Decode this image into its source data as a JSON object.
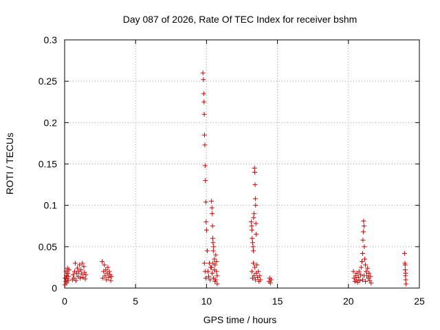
{
  "chart_data": {
    "type": "scatter",
    "title": "Day 087 of 2026, Rate Of TEC Index for receiver bshm",
    "xlabel": "GPS time / hours",
    "ylabel": "ROTI / TECUs",
    "xlim": [
      0,
      25
    ],
    "ylim": [
      0,
      0.3
    ],
    "xticks": [
      "0",
      "5",
      "10",
      "15",
      "20",
      "25"
    ],
    "yticks": [
      "0",
      "0.05",
      "0.1",
      "0.15",
      "0.2",
      "0.25",
      "0.3"
    ],
    "grid": true,
    "marker": "+",
    "color": "#cc0000",
    "points": [
      [
        0.02,
        0.004
      ],
      [
        0.05,
        0.012
      ],
      [
        0.08,
        0.008
      ],
      [
        0.1,
        0.02
      ],
      [
        0.12,
        0.015
      ],
      [
        0.15,
        0.006
      ],
      [
        0.18,
        0.011
      ],
      [
        0.2,
        0.024
      ],
      [
        0.22,
        0.018
      ],
      [
        0.25,
        0.009
      ],
      [
        0.28,
        0.014
      ],
      [
        0.3,
        0.022
      ],
      [
        0.55,
        0.01
      ],
      [
        0.6,
        0.016
      ],
      [
        0.65,
        0.012
      ],
      [
        0.7,
        0.02
      ],
      [
        0.75,
        0.03
      ],
      [
        0.8,
        0.009
      ],
      [
        0.85,
        0.018
      ],
      [
        0.9,
        0.024
      ],
      [
        0.95,
        0.014
      ],
      [
        1.0,
        0.02
      ],
      [
        1.05,
        0.028
      ],
      [
        1.1,
        0.012
      ],
      [
        1.15,
        0.022
      ],
      [
        1.2,
        0.017
      ],
      [
        1.25,
        0.03
      ],
      [
        1.3,
        0.013
      ],
      [
        1.35,
        0.026
      ],
      [
        1.4,
        0.019
      ],
      [
        1.45,
        0.011
      ],
      [
        1.5,
        0.016
      ],
      [
        2.65,
        0.032
      ],
      [
        2.7,
        0.012
      ],
      [
        2.75,
        0.02
      ],
      [
        2.8,
        0.028
      ],
      [
        2.85,
        0.015
      ],
      [
        2.9,
        0.022
      ],
      [
        2.95,
        0.01
      ],
      [
        3.0,
        0.018
      ],
      [
        3.05,
        0.025
      ],
      [
        3.1,
        0.013
      ],
      [
        3.15,
        0.02
      ],
      [
        3.2,
        0.016
      ],
      [
        3.25,
        0.009
      ],
      [
        3.3,
        0.014
      ],
      [
        9.75,
        0.26
      ],
      [
        9.78,
        0.252
      ],
      [
        9.8,
        0.235
      ],
      [
        9.82,
        0.225
      ],
      [
        9.84,
        0.21
      ],
      [
        9.86,
        0.185
      ],
      [
        9.88,
        0.173
      ],
      [
        9.9,
        0.148
      ],
      [
        9.92,
        0.13
      ],
      [
        9.95,
        0.104
      ],
      [
        9.97,
        0.08
      ],
      [
        10.0,
        0.07
      ],
      [
        9.85,
        0.03
      ],
      [
        9.9,
        0.02
      ],
      [
        9.95,
        0.012
      ],
      [
        10.05,
        0.045
      ],
      [
        10.1,
        0.02
      ],
      [
        10.15,
        0.014
      ],
      [
        10.2,
        0.03
      ],
      [
        10.25,
        0.01
      ],
      [
        10.3,
        0.025
      ],
      [
        10.35,
        0.105
      ],
      [
        10.38,
        0.097
      ],
      [
        10.4,
        0.09
      ],
      [
        10.42,
        0.075
      ],
      [
        10.44,
        0.06
      ],
      [
        10.46,
        0.055
      ],
      [
        10.48,
        0.045
      ],
      [
        10.5,
        0.05
      ],
      [
        10.55,
        0.035
      ],
      [
        10.6,
        0.028
      ],
      [
        10.65,
        0.04
      ],
      [
        10.7,
        0.02
      ],
      [
        10.75,
        0.015
      ],
      [
        10.5,
        0.012
      ],
      [
        10.6,
        0.008
      ],
      [
        10.4,
        0.018
      ],
      [
        10.35,
        0.025
      ],
      [
        10.45,
        0.03
      ],
      [
        10.55,
        0.022
      ],
      [
        10.65,
        0.01
      ],
      [
        10.7,
        0.032
      ],
      [
        10.75,
        0.005
      ],
      [
        13.15,
        0.08
      ],
      [
        13.18,
        0.075
      ],
      [
        13.2,
        0.07
      ],
      [
        13.22,
        0.06
      ],
      [
        13.25,
        0.055
      ],
      [
        13.28,
        0.05
      ],
      [
        13.3,
        0.045
      ],
      [
        13.32,
        0.085
      ],
      [
        13.35,
        0.09
      ],
      [
        13.38,
        0.145
      ],
      [
        13.4,
        0.14
      ],
      [
        13.42,
        0.125
      ],
      [
        13.44,
        0.108
      ],
      [
        13.46,
        0.1
      ],
      [
        13.48,
        0.078
      ],
      [
        13.5,
        0.065
      ],
      [
        13.2,
        0.02
      ],
      [
        13.25,
        0.012
      ],
      [
        13.3,
        0.03
      ],
      [
        13.35,
        0.015
      ],
      [
        13.4,
        0.025
      ],
      [
        13.45,
        0.01
      ],
      [
        13.5,
        0.018
      ],
      [
        13.55,
        0.028
      ],
      [
        13.6,
        0.013
      ],
      [
        13.65,
        0.02
      ],
      [
        13.7,
        0.008
      ],
      [
        13.75,
        0.015
      ],
      [
        13.8,
        0.01
      ],
      [
        14.4,
        0.008
      ],
      [
        14.45,
        0.012
      ],
      [
        14.5,
        0.006
      ],
      [
        14.55,
        0.01
      ],
      [
        20.35,
        0.02
      ],
      [
        20.4,
        0.012
      ],
      [
        20.45,
        0.008
      ],
      [
        20.5,
        0.015
      ],
      [
        20.55,
        0.01
      ],
      [
        20.6,
        0.018
      ],
      [
        20.65,
        0.007
      ],
      [
        20.7,
        0.013
      ],
      [
        20.75,
        0.02
      ],
      [
        20.8,
        0.009
      ],
      [
        20.85,
        0.016
      ],
      [
        20.9,
        0.025
      ],
      [
        20.95,
        0.032
      ],
      [
        21.0,
        0.042
      ],
      [
        21.02,
        0.058
      ],
      [
        21.05,
        0.068
      ],
      [
        21.07,
        0.081
      ],
      [
        21.1,
        0.075
      ],
      [
        21.12,
        0.05
      ],
      [
        21.15,
        0.035
      ],
      [
        21.2,
        0.028
      ],
      [
        21.25,
        0.02
      ],
      [
        21.3,
        0.015
      ],
      [
        21.35,
        0.024
      ],
      [
        21.4,
        0.012
      ],
      [
        21.45,
        0.018
      ],
      [
        21.5,
        0.009
      ],
      [
        21.55,
        0.014
      ],
      [
        21.6,
        0.006
      ],
      [
        21.0,
        0.01
      ],
      [
        21.1,
        0.015
      ],
      [
        21.2,
        0.008
      ],
      [
        23.95,
        0.042
      ],
      [
        23.98,
        0.03
      ],
      [
        24.0,
        0.022
      ],
      [
        24.02,
        0.015
      ],
      [
        24.04,
        0.01
      ],
      [
        24.06,
        0.005
      ],
      [
        24.0,
        0.028
      ],
      [
        24.03,
        0.018
      ]
    ]
  }
}
